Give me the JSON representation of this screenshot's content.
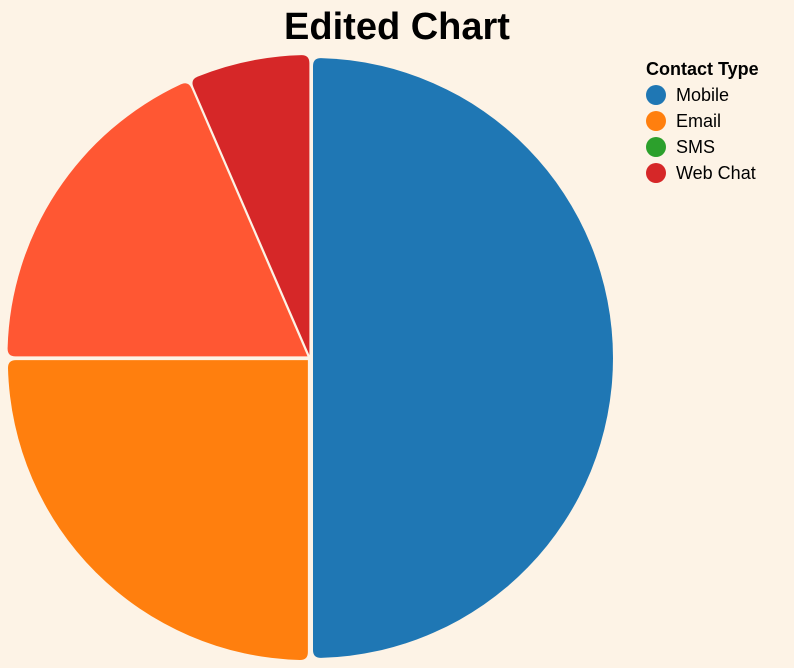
{
  "chart_data": {
    "type": "pie",
    "title": "Edited Chart",
    "legend_title": "Contact Type",
    "legend_position": "top-right",
    "slices": [
      {
        "label": "Mobile",
        "value": 50,
        "color": "#1f77b4"
      },
      {
        "label": "Email",
        "value": 25,
        "color": "#ff7f0e"
      },
      {
        "label": "SMS",
        "value": 0,
        "color": "#2ca02c"
      },
      {
        "label": "",
        "value": 18.5,
        "color": "#ff5733"
      },
      {
        "label": "Web Chat",
        "value": 6.5,
        "color": "#d62728"
      }
    ],
    "legend": [
      {
        "label": "Mobile",
        "color": "#1f77b4"
      },
      {
        "label": "Email",
        "color": "#ff7f0e"
      },
      {
        "label": "SMS",
        "color": "#2ca02c"
      },
      {
        "label": "Web Chat",
        "color": "#d62728"
      }
    ]
  }
}
